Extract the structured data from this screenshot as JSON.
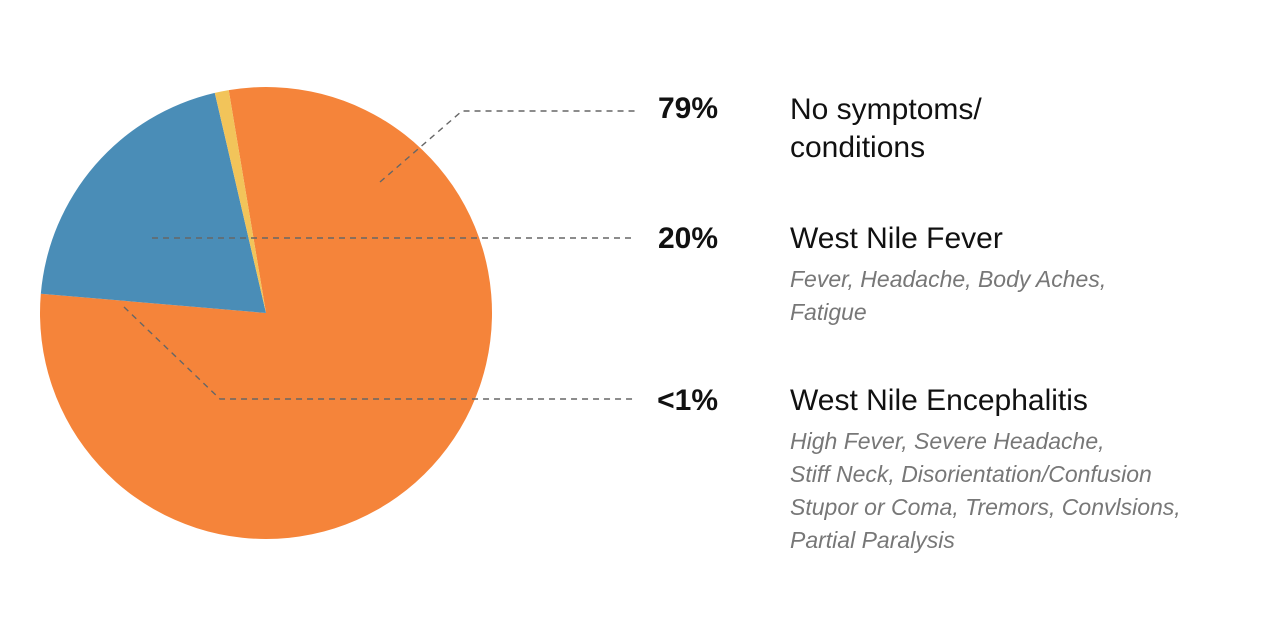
{
  "chart_data": {
    "type": "pie",
    "slices": [
      {
        "value": 79,
        "value_label": "79%",
        "label": "No symptoms/ conditions",
        "label_lines": [
          "No symptoms/",
          "conditions"
        ],
        "description_lines": [],
        "color": "#f5843a"
      },
      {
        "value": 20,
        "value_label": "20%",
        "label": "West Nile Fever",
        "label_lines": [
          "West Nile Fever"
        ],
        "description_lines": [
          "Fever, Headache, Body Aches,",
          "Fatigue"
        ],
        "color": "#4a8db7"
      },
      {
        "value": 1,
        "value_label": "<1%",
        "label": "West Nile Encephalitis",
        "label_lines": [
          "West Nile Encephalitis"
        ],
        "description_lines": [
          "High Fever, Severe Headache,",
          "Stiff Neck, Disorientation/Confusion",
          "Stupor or Coma, Tremors, Convlsions,",
          "Partial Paralysis"
        ],
        "color": "#f2c45a"
      }
    ],
    "leader_line_color": "#666666"
  }
}
